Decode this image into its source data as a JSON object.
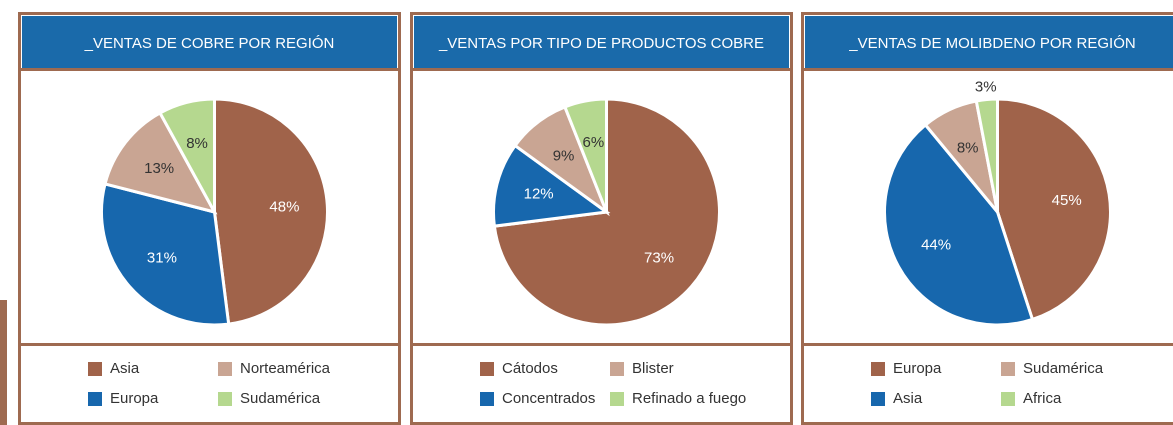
{
  "chart_data": [
    {
      "type": "pie",
      "title": "_VENTAS DE COBRE POR REGIÓN",
      "categories": [
        "Asia",
        "Europa",
        "Norteamérica",
        "Sudamérica"
      ],
      "values": [
        48,
        31,
        13,
        8
      ],
      "value_labels": [
        "48%",
        "31%",
        "13%",
        "8%"
      ],
      "colors": [
        "#a0634a",
        "#1767ad",
        "#c9a593",
        "#b5d88f"
      ]
    },
    {
      "type": "pie",
      "title": "_VENTAS POR TIPO DE PRODUCTOS COBRE",
      "categories": [
        "Cátodos",
        "Concentrados",
        "Blister",
        "Refinado a fuego"
      ],
      "values": [
        73,
        12,
        9,
        6
      ],
      "value_labels": [
        "73%",
        "12%",
        "9%",
        "6%"
      ],
      "colors": [
        "#a0634a",
        "#1767ad",
        "#c9a593",
        "#b5d88f"
      ]
    },
    {
      "type": "pie",
      "title": "_VENTAS DE MOLIBDENO POR REGIÓN",
      "categories": [
        "Europa",
        "Asia",
        "Sudamérica",
        "Africa"
      ],
      "values": [
        45,
        44,
        8,
        3
      ],
      "value_labels": [
        "45%",
        "44%",
        "8%",
        "3%"
      ],
      "colors": [
        "#a0634a",
        "#1767ad",
        "#c9a593",
        "#b5d88f"
      ]
    }
  ]
}
